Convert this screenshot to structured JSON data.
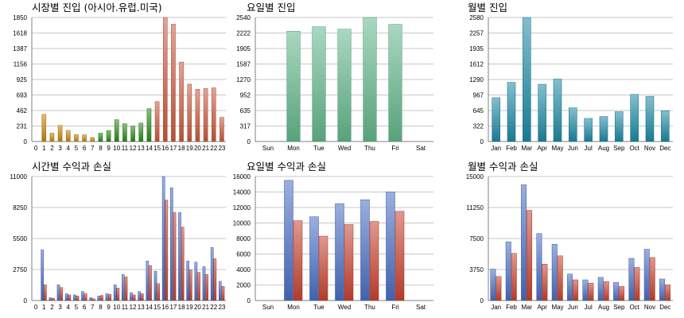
{
  "colors": {
    "asia": "#c8860e",
    "europe": "#2c8a1a",
    "america": "#cc5a3e",
    "weekday": "#63b88c",
    "month": "#1d8aa5",
    "profit": "#4a6ec4",
    "loss": "#c9432f"
  },
  "chart_data": [
    {
      "type": "bar",
      "title": "시장별 진입 (아시아.유럽.미국)",
      "categories": [
        "0",
        "1",
        "2",
        "3",
        "4",
        "5",
        "6",
        "7",
        "8",
        "9",
        "10",
        "11",
        "12",
        "13",
        "14",
        "15",
        "16",
        "17",
        "18",
        "19",
        "20",
        "21",
        "22",
        "23"
      ],
      "values": [
        0,
        405,
        125,
        240,
        165,
        105,
        100,
        60,
        125,
        165,
        325,
        265,
        230,
        275,
        490,
        595,
        1850,
        1750,
        1185,
        855,
        780,
        790,
        800,
        360
      ],
      "value_colors": [
        "asia",
        "asia",
        "asia",
        "asia",
        "asia",
        "asia",
        "asia",
        "asia",
        "europe",
        "europe",
        "europe",
        "europe",
        "europe",
        "europe",
        "europe",
        "america",
        "america",
        "america",
        "america",
        "america",
        "america",
        "america",
        "america",
        "america"
      ],
      "yticks": [
        "0",
        "231",
        "462",
        "693",
        "925",
        "1156",
        "1387",
        "1618",
        "1850"
      ],
      "ylim": [
        0,
        1850
      ]
    },
    {
      "type": "bar",
      "title": "요일별 진입",
      "categories": [
        "Sun",
        "Mon",
        "Tue",
        "Wed",
        "Thu",
        "Fri",
        "Sat"
      ],
      "values": [
        0,
        2260,
        2350,
        2300,
        2540,
        2400,
        0
      ],
      "yticks": [
        "0",
        "317",
        "635",
        "952",
        "1270",
        "1587",
        "1905",
        "2222",
        "2540"
      ],
      "ylim": [
        0,
        2540
      ]
    },
    {
      "type": "bar",
      "title": "월별 진입",
      "categories": [
        "Jan",
        "Feb",
        "Mar",
        "Apr",
        "May",
        "Jun",
        "Jul",
        "Aug",
        "Sep",
        "Oct",
        "Nov",
        "Dec"
      ],
      "values": [
        910,
        1230,
        2580,
        1190,
        1300,
        700,
        480,
        520,
        620,
        980,
        940,
        640
      ],
      "yticks": [
        "0",
        "322",
        "645",
        "967",
        "1290",
        "1612",
        "1935",
        "2257",
        "2580"
      ],
      "ylim": [
        0,
        2580
      ]
    },
    {
      "type": "bar",
      "title": "시간별 수익과 손실",
      "categories": [
        "0",
        "1",
        "2",
        "3",
        "4",
        "5",
        "6",
        "7",
        "8",
        "9",
        "10",
        "11",
        "12",
        "13",
        "14",
        "15",
        "16",
        "17",
        "18",
        "19",
        "20",
        "21",
        "22",
        "23"
      ],
      "series": [
        {
          "values": [
            0,
            4500,
            250,
            1400,
            600,
            500,
            800,
            250,
            400,
            600,
            1400,
            2300,
            700,
            800,
            3500,
            2600,
            11000,
            10000,
            7800,
            3500,
            3400,
            3000,
            4700,
            1700
          ]
        },
        {
          "values": [
            0,
            1400,
            200,
            1150,
            500,
            400,
            600,
            150,
            450,
            550,
            1100,
            2100,
            500,
            600,
            3100,
            1500,
            8900,
            7800,
            6500,
            2700,
            2500,
            2300,
            3700,
            1250
          ]
        }
      ],
      "series_colors": [
        "profit",
        "loss"
      ],
      "yticks": [
        "0",
        "2750",
        "5500",
        "8250",
        "11000"
      ],
      "ylim": [
        0,
        11000
      ]
    },
    {
      "type": "bar",
      "title": "요일별 수익과 손실",
      "categories": [
        "Sun",
        "Mon",
        "Tue",
        "Wed",
        "Thu",
        "Fri",
        "Sat"
      ],
      "series": [
        {
          "values": [
            0,
            15500,
            10800,
            12500,
            13000,
            14000,
            0
          ]
        },
        {
          "values": [
            0,
            10300,
            8300,
            9800,
            10200,
            11500,
            0
          ]
        }
      ],
      "series_colors": [
        "profit",
        "loss"
      ],
      "yticks": [
        "0",
        "2000",
        "4000",
        "6000",
        "8000",
        "10000",
        "12000",
        "14000",
        "16000"
      ],
      "ylim": [
        0,
        16000
      ]
    },
    {
      "type": "bar",
      "title": "월별 수익과 손실",
      "categories": [
        "Jan",
        "Feb",
        "Mar",
        "Apr",
        "May",
        "Jun",
        "Jul",
        "Aug",
        "Sep",
        "Oct",
        "Nov",
        "Dec"
      ],
      "series": [
        {
          "values": [
            3800,
            7100,
            14000,
            8100,
            6800,
            3200,
            2500,
            2800,
            2200,
            5100,
            6200,
            2600
          ]
        },
        {
          "values": [
            2900,
            5700,
            10900,
            4400,
            5400,
            2500,
            2100,
            2300,
            1700,
            4000,
            5200,
            1900
          ]
        }
      ],
      "series_colors": [
        "profit",
        "loss"
      ],
      "yticks": [
        "0",
        "3750",
        "7500",
        "11250",
        "15000"
      ],
      "ylim": [
        0,
        15000
      ]
    }
  ]
}
